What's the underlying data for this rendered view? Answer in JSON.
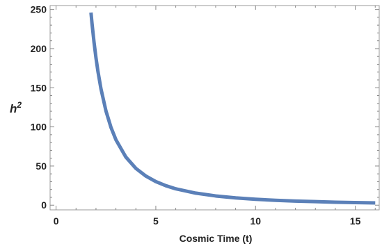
{
  "chart_data": {
    "type": "line",
    "title": "",
    "xlabel": "Cosmic Time (t)",
    "ylabel": "h",
    "ylabel_superscript": "2",
    "xlim": [
      -0.3,
      16.2
    ],
    "ylim": [
      -6,
      255
    ],
    "x_ticks": [
      0,
      5,
      10,
      15
    ],
    "y_ticks": [
      0,
      50,
      100,
      150,
      200,
      250
    ],
    "grid": false,
    "frame": true,
    "line_color": "#5b80b8",
    "series": [
      {
        "x": [
          1.75,
          1.8,
          1.9,
          2.0,
          2.1,
          2.25,
          2.5,
          2.75,
          3.0,
          3.5,
          4.0,
          4.5,
          5.0,
          5.5,
          6.0,
          7.0,
          8.0,
          9.0,
          10.0,
          11.0,
          12.0,
          13.0,
          14.0,
          15.0,
          16.0
        ],
        "y": [
          246,
          232.4,
          208.6,
          188.2,
          170.7,
          148.7,
          120.4,
          99.5,
          83.6,
          61.4,
          47.0,
          37.2,
          30.1,
          24.9,
          20.9,
          15.4,
          11.8,
          9.3,
          7.5,
          6.2,
          5.2,
          4.5,
          3.8,
          3.3,
          2.9
        ]
      }
    ]
  }
}
